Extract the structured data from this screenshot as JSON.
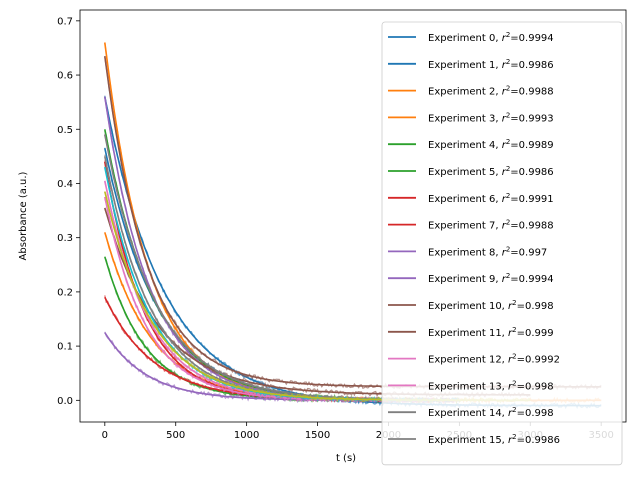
{
  "chart_data": {
    "type": "line",
    "title": "",
    "xlabel": "t (s)",
    "ylabel": "Absorbance (a.u.)",
    "xlim": [
      -175,
      3675
    ],
    "ylim": [
      -0.04,
      0.72
    ],
    "xticks": [
      0,
      500,
      1000,
      1500,
      2000,
      2500,
      3000,
      3500
    ],
    "yticks": [
      0.0,
      0.1,
      0.2,
      0.3,
      0.4,
      0.5,
      0.6,
      0.7
    ],
    "legend_position": "upper-right",
    "series": [
      {
        "name": "Experiment 0",
        "label_prefix": "Experiment 0, ",
        "r2": "0.9994",
        "color": "#1f77b4",
        "a0": 0.57,
        "tau": 420,
        "offset": -0.01,
        "tmax": 3500
      },
      {
        "name": "Experiment 1",
        "label_prefix": "Experiment 1, ",
        "r2": "0.9986",
        "color": "#1f77b4",
        "a0": 0.47,
        "tau": 380,
        "offset": -0.005,
        "tmax": 2000
      },
      {
        "name": "Experiment 2",
        "label_prefix": "Experiment 2, ",
        "r2": "0.9988",
        "color": "#ff7f0e",
        "a0": 0.66,
        "tau": 310,
        "offset": 0.0,
        "tmax": 3500
      },
      {
        "name": "Experiment 3",
        "label_prefix": "Experiment 3, ",
        "r2": "0.9993",
        "color": "#ff7f0e",
        "a0": 0.31,
        "tau": 330,
        "offset": 0.0,
        "tmax": 2500
      },
      {
        "name": "Experiment 4",
        "label_prefix": "Experiment 4, ",
        "r2": "0.9989",
        "color": "#2ca02c",
        "a0": 0.265,
        "tau": 290,
        "offset": 0.0,
        "tmax": 2500
      },
      {
        "name": "Experiment 5",
        "label_prefix": "Experiment 5, ",
        "r2": "0.9986",
        "color": "#2ca02c",
        "a0": 0.5,
        "tau": 350,
        "offset": 0.0,
        "tmax": 2500
      },
      {
        "name": "Experiment 6",
        "label_prefix": "Experiment 6, ",
        "r2": "0.9991",
        "color": "#d62728",
        "a0": 0.19,
        "tau": 350,
        "offset": 0.0,
        "tmax": 2500
      },
      {
        "name": "Experiment 7",
        "label_prefix": "Experiment 7, ",
        "r2": "0.9988",
        "color": "#d62728",
        "a0": 0.44,
        "tau": 280,
        "offset": 0.0,
        "tmax": 2500
      },
      {
        "name": "Experiment 8",
        "label_prefix": "Experiment 8, ",
        "r2": "0.997",
        "color": "#9467bd",
        "a0": 0.125,
        "tau": 300,
        "offset": 0.0,
        "tmax": 2500
      },
      {
        "name": "Experiment 9",
        "label_prefix": "Experiment 9, ",
        "r2": "0.9994",
        "color": "#9467bd",
        "a0": 0.56,
        "tau": 320,
        "offset": 0.0,
        "tmax": 2500
      },
      {
        "name": "Experiment 10",
        "label_prefix": "Experiment 10, ",
        "r2": "0.998",
        "color": "#8c564b",
        "a0": 0.61,
        "tau": 300,
        "offset": 0.025,
        "tmax": 3500
      },
      {
        "name": "Experiment 11",
        "label_prefix": "Experiment 11, ",
        "r2": "0.999",
        "color": "#8c564b",
        "a0": 0.345,
        "tau": 380,
        "offset": 0.01,
        "tmax": 3000
      },
      {
        "name": "Experiment 12",
        "label_prefix": "Experiment 12, ",
        "r2": "0.9992",
        "color": "#e377c2",
        "a0": 0.405,
        "tau": 310,
        "offset": 0.0,
        "tmax": 2500
      },
      {
        "name": "Experiment 13",
        "label_prefix": "Experiment 13, ",
        "r2": "0.998",
        "color": "#e377c2",
        "a0": 0.375,
        "tau": 290,
        "offset": 0.0,
        "tmax": 2500
      },
      {
        "name": "Experiment 14",
        "label_prefix": "Experiment 14, ",
        "r2": "0.998",
        "color": "#7f7f7f",
        "a0": 0.45,
        "tau": 330,
        "offset": 0.0,
        "tmax": 2500
      },
      {
        "name": "Experiment 15",
        "label_prefix": "Experiment 15, ",
        "r2": "0.9986",
        "color": "#7f7f7f",
        "a0": 0.49,
        "tau": 360,
        "offset": 0.0,
        "tmax": 2500
      },
      {
        "name": "",
        "label_prefix": "",
        "r2": "",
        "color": "#17becf",
        "a0": 0.43,
        "tau": 320,
        "offset": 0.0,
        "tmax": 2500
      },
      {
        "name": "",
        "label_prefix": "",
        "r2": "",
        "color": "#bcbd22",
        "a0": 0.385,
        "tau": 340,
        "offset": 0.0,
        "tmax": 3000
      }
    ]
  }
}
